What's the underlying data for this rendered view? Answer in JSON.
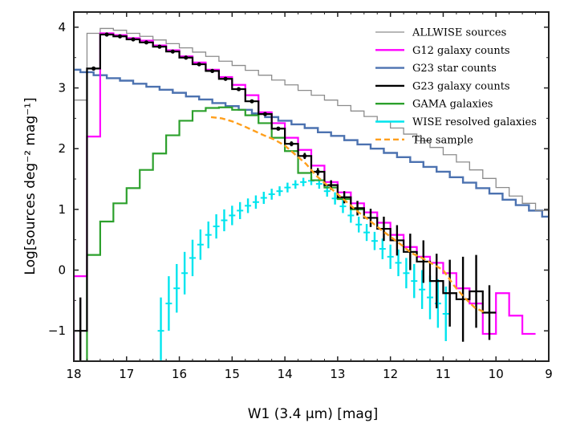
{
  "chart_data": {
    "type": "line",
    "title": "",
    "xlabel": "W1 (3.4 μm) [mag]",
    "ylabel": "Log[sources deg⁻² mag⁻¹]",
    "xlim": [
      18,
      9
    ],
    "ylim": [
      -1.5,
      4.25
    ],
    "x_ticks": [
      18,
      17,
      16,
      15,
      14,
      13,
      12,
      11,
      10,
      9
    ],
    "x_tick_labels": [
      "18",
      "17",
      "16",
      "15",
      "14",
      "13",
      "12",
      "11",
      "10",
      "9"
    ],
    "y_ticks": [
      -1,
      0,
      1,
      2,
      3,
      4
    ],
    "y_tick_labels": [
      "−1",
      "0",
      "1",
      "2",
      "3",
      "4"
    ],
    "grid": false,
    "legend_position": "top-right",
    "series": [
      {
        "name": "ALLWISE sources",
        "style": "step",
        "color": "#8c8c8c",
        "x": [
          17.875,
          17.625,
          17.375,
          17.125,
          16.875,
          16.625,
          16.375,
          16.125,
          15.875,
          15.625,
          15.375,
          15.125,
          14.875,
          14.625,
          14.375,
          14.125,
          13.875,
          13.625,
          13.375,
          13.125,
          12.875,
          12.625,
          12.375,
          12.125,
          11.875,
          11.625,
          11.375,
          11.125,
          10.875,
          10.625,
          10.375,
          10.125,
          9.875,
          9.625,
          9.375,
          9.125
        ],
        "y": [
          2.8,
          3.9,
          3.98,
          3.95,
          3.9,
          3.85,
          3.79,
          3.73,
          3.66,
          3.59,
          3.52,
          3.44,
          3.37,
          3.29,
          3.21,
          3.13,
          3.05,
          2.96,
          2.88,
          2.8,
          2.71,
          2.62,
          2.53,
          2.44,
          2.34,
          2.24,
          2.13,
          2.02,
          1.9,
          1.78,
          1.65,
          1.51,
          1.36,
          1.22,
          1.1,
          0.98
        ]
      },
      {
        "name": "G12 galaxy counts",
        "style": "step",
        "color": "#ff00ff",
        "x": [
          17.875,
          17.625,
          17.375,
          17.125,
          16.875,
          16.625,
          16.375,
          16.125,
          15.875,
          15.625,
          15.375,
          15.125,
          14.875,
          14.625,
          14.375,
          14.125,
          13.875,
          13.625,
          13.375,
          13.125,
          12.875,
          12.625,
          12.375,
          12.125,
          11.875,
          11.625,
          11.375,
          11.125,
          10.875,
          10.625,
          10.375,
          10.125,
          9.875,
          9.625,
          9.375
        ],
        "y": [
          -0.1,
          2.2,
          3.9,
          3.87,
          3.82,
          3.78,
          3.7,
          3.62,
          3.52,
          3.42,
          3.3,
          3.18,
          3.05,
          2.88,
          2.6,
          2.42,
          2.18,
          1.98,
          1.72,
          1.45,
          1.28,
          1.1,
          0.95,
          0.78,
          0.58,
          0.38,
          0.22,
          0.12,
          -0.05,
          -0.3,
          -0.55,
          -1.05,
          -0.38,
          -0.75,
          -1.05
        ]
      },
      {
        "name": "G23 star counts",
        "style": "step",
        "color": "#4c72b0",
        "x": [
          18.0,
          17.75,
          17.5,
          17.25,
          17.0,
          16.75,
          16.5,
          16.25,
          16.0,
          15.75,
          15.5,
          15.25,
          15.0,
          14.75,
          14.5,
          14.25,
          14.0,
          13.75,
          13.5,
          13.25,
          13.0,
          12.75,
          12.5,
          12.25,
          12.0,
          11.75,
          11.5,
          11.25,
          11.0,
          10.75,
          10.5,
          10.25,
          10.0,
          9.75,
          9.5,
          9.25,
          9.0
        ],
        "y": [
          3.3,
          3.26,
          3.21,
          3.16,
          3.12,
          3.07,
          3.02,
          2.97,
          2.92,
          2.86,
          2.81,
          2.75,
          2.7,
          2.64,
          2.58,
          2.52,
          2.46,
          2.4,
          2.34,
          2.27,
          2.21,
          2.14,
          2.07,
          2.0,
          1.93,
          1.86,
          1.78,
          1.7,
          1.62,
          1.53,
          1.44,
          1.35,
          1.26,
          1.16,
          1.07,
          0.98,
          0.88
        ]
      },
      {
        "name": "G23 galaxy counts",
        "style": "step",
        "color": "#000000",
        "x": [
          17.875,
          17.625,
          17.375,
          17.125,
          16.875,
          16.625,
          16.375,
          16.125,
          15.875,
          15.625,
          15.375,
          15.125,
          14.875,
          14.625,
          14.375,
          14.125,
          13.875,
          13.625,
          13.375,
          13.125,
          12.875,
          12.625,
          12.375,
          12.125,
          11.875,
          11.625,
          11.375,
          11.125,
          10.875,
          10.625,
          10.375,
          10.125
        ],
        "y": [
          -1.0,
          3.32,
          3.88,
          3.85,
          3.8,
          3.75,
          3.68,
          3.6,
          3.5,
          3.39,
          3.28,
          3.15,
          2.98,
          2.78,
          2.57,
          2.33,
          2.08,
          1.88,
          1.62,
          1.4,
          1.2,
          1.02,
          0.86,
          0.68,
          0.49,
          0.3,
          0.14,
          -0.18,
          -0.38,
          -0.48,
          -0.35,
          -0.7
        ],
        "yerr": [
          0.55,
          0.02,
          0.01,
          0.01,
          0.01,
          0.01,
          0.01,
          0.01,
          0.01,
          0.01,
          0.01,
          0.01,
          0.01,
          0.01,
          0.01,
          0.02,
          0.04,
          0.05,
          0.06,
          0.08,
          0.1,
          0.12,
          0.15,
          0.2,
          0.25,
          0.3,
          0.35,
          0.45,
          0.55,
          0.7,
          0.6,
          0.45
        ]
      },
      {
        "name": "GAMA galaxies",
        "style": "step",
        "color": "#2ca02c",
        "x": [
          17.625,
          17.375,
          17.125,
          16.875,
          16.625,
          16.375,
          16.125,
          15.875,
          15.625,
          15.375,
          15.125,
          14.875,
          14.625,
          14.375,
          14.125,
          13.875,
          13.625,
          13.375,
          13.125,
          12.875,
          12.625
        ],
        "y": [
          0.25,
          0.8,
          1.1,
          1.35,
          1.65,
          1.92,
          2.22,
          2.46,
          2.62,
          2.67,
          2.68,
          2.64,
          2.55,
          2.42,
          2.18,
          1.96,
          1.6,
          1.48,
          1.36,
          1.17,
          1.0
        ]
      },
      {
        "name": "WISE resolved galaxies",
        "style": "errorbar",
        "color": "#00e5ee",
        "x": [
          16.35,
          16.2,
          16.05,
          15.9,
          15.75,
          15.6,
          15.45,
          15.3,
          15.15,
          15.0,
          14.85,
          14.7,
          14.55,
          14.4,
          14.25,
          14.1,
          13.95,
          13.8,
          13.65,
          13.5,
          13.35,
          13.2,
          13.05,
          12.9,
          12.75,
          12.6,
          12.45,
          12.3,
          12.15,
          12.0,
          11.85,
          11.7,
          11.55,
          11.4,
          11.25,
          11.1,
          10.95
        ],
        "y": [
          -1.0,
          -0.55,
          -0.3,
          -0.05,
          0.2,
          0.42,
          0.58,
          0.72,
          0.82,
          0.9,
          0.98,
          1.06,
          1.12,
          1.19,
          1.25,
          1.3,
          1.36,
          1.41,
          1.45,
          1.47,
          1.42,
          1.3,
          1.18,
          1.05,
          0.9,
          0.75,
          0.62,
          0.48,
          0.35,
          0.22,
          0.12,
          -0.05,
          -0.18,
          -0.32,
          -0.45,
          -0.55,
          -0.72
        ],
        "yerr": [
          0.55,
          0.45,
          0.4,
          0.35,
          0.3,
          0.25,
          0.22,
          0.2,
          0.18,
          0.16,
          0.14,
          0.12,
          0.11,
          0.1,
          0.09,
          0.08,
          0.08,
          0.07,
          0.07,
          0.07,
          0.08,
          0.09,
          0.1,
          0.11,
          0.12,
          0.13,
          0.14,
          0.15,
          0.17,
          0.2,
          0.22,
          0.25,
          0.28,
          0.32,
          0.36,
          0.4,
          0.45
        ]
      },
      {
        "name": "The sample",
        "style": "dashed",
        "color": "#ff9f1c",
        "x": [
          15.4,
          15.2,
          15.0,
          14.8,
          14.6,
          14.4,
          14.2,
          14.0,
          13.8,
          13.6,
          13.4,
          13.2,
          13.0,
          12.8,
          12.6,
          12.4,
          12.2,
          12.0,
          11.8,
          11.6,
          11.4,
          11.2,
          11.0,
          10.8,
          10.6,
          10.4,
          10.2
        ],
        "y": [
          2.52,
          2.5,
          2.45,
          2.38,
          2.3,
          2.22,
          2.15,
          2.05,
          1.9,
          1.75,
          1.55,
          1.4,
          1.25,
          1.1,
          0.95,
          0.82,
          0.68,
          0.55,
          0.42,
          0.28,
          0.2,
          0.1,
          0.0,
          -0.25,
          -0.45,
          -0.62,
          -0.7
        ]
      }
    ]
  }
}
